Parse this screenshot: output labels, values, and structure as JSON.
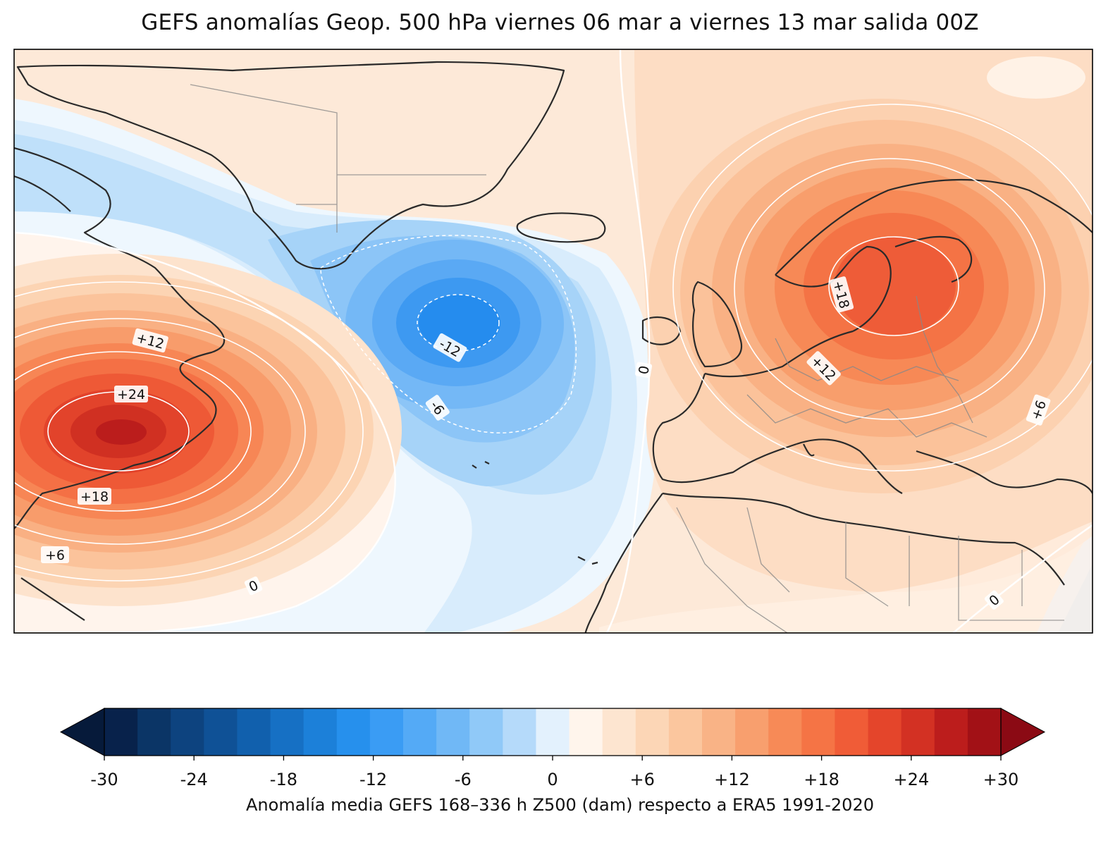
{
  "title": "GEFS anomalías Geop. 500 hPa viernes 06 mar a viernes 13 mar salida 00Z",
  "colorbar": {
    "label": "Anomalía media GEFS 168–336 h Z500 (dam) respecto a ERA5 1991-2020",
    "min": -30,
    "max": 30,
    "step": 2,
    "tick_values": [
      -30,
      -24,
      -18,
      -12,
      -6,
      0,
      6,
      12,
      18,
      24,
      30
    ],
    "tick_labels": [
      "-30",
      "-24",
      "-18",
      "-12",
      "-6",
      "0",
      "+6",
      "+12",
      "+18",
      "+24",
      "+30"
    ],
    "colors": [
      "#08224b",
      "#0b3566",
      "#0d437f",
      "#0f5196",
      "#1160ad",
      "#1670c4",
      "#1c80d9",
      "#2690ed",
      "#3a9cf4",
      "#54aaf6",
      "#70b8f6",
      "#90c9f8",
      "#b5dafa",
      "#e3f1fd",
      "#fff5ec",
      "#fde5d0",
      "#fcd6b6",
      "#fbc69e",
      "#f9b386",
      "#f89f6e",
      "#f78a57",
      "#f57445",
      "#f05c37",
      "#e4452b",
      "#d33123",
      "#bc1d1c",
      "#a21116"
    ],
    "under_color": "#061a3a",
    "over_color": "#8b0a14"
  },
  "map": {
    "region": "North Atlantic and Europe",
    "contour_labels": [
      "+12",
      "+24",
      "+18",
      "+6",
      "0",
      "-12",
      "-6",
      "0",
      "+18",
      "+12",
      "+6",
      "0"
    ],
    "anomaly_centers": [
      {
        "name": "ridge-northeast-america",
        "value": 24
      },
      {
        "name": "trough-south-greenland",
        "value": -12
      },
      {
        "name": "ridge-scandinavia",
        "value": 18
      }
    ]
  }
}
